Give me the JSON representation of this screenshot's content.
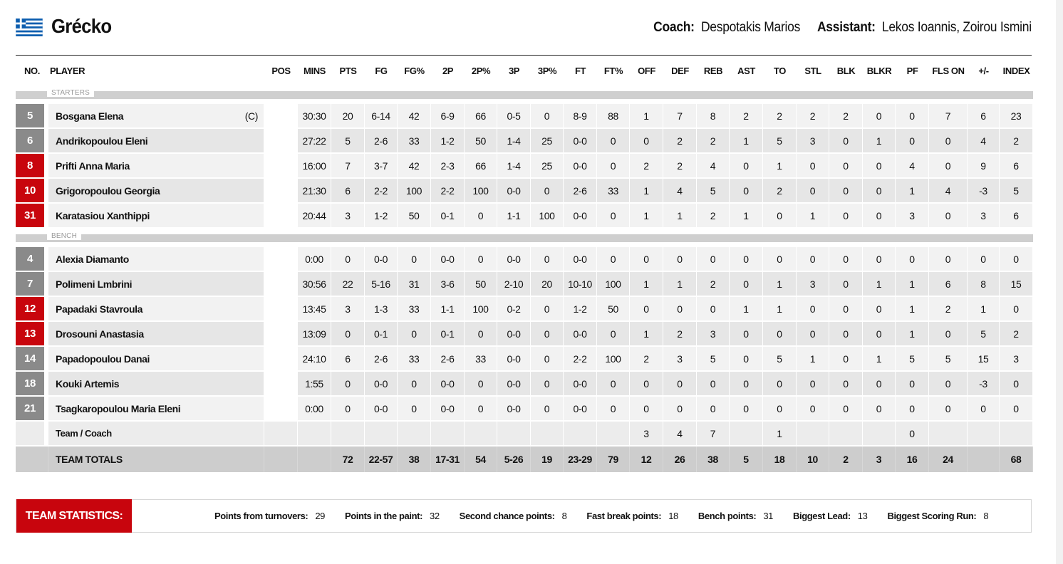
{
  "team": {
    "name": "Grécko",
    "flag_icon": "greece-flag-icon",
    "coach_label": "Coach:",
    "coach": "Despotakis Marios",
    "assistant_label": "Assistant:",
    "assistant": "Lekos Ioannis, Zoirou Ismini"
  },
  "colors": {
    "accent": "#c8050d",
    "grey_badge": "#8a8a8a"
  },
  "columns": [
    "NO.",
    "PLAYER",
    "POS",
    "MINS",
    "PTS",
    "FG",
    "FG%",
    "2P",
    "2P%",
    "3P",
    "3P%",
    "FT",
    "FT%",
    "OFF",
    "DEF",
    "REB",
    "AST",
    "TO",
    "STL",
    "BLK",
    "BLKR",
    "PF",
    "FLS ON",
    "+/-",
    "INDEX"
  ],
  "sections": {
    "starters": "STARTERS",
    "bench": "BENCH"
  },
  "starters": [
    {
      "no": "5",
      "badge": "grey",
      "name": "Bosgana Elena",
      "captain": "(C)",
      "pos": "",
      "stats": [
        "30:30",
        "20",
        "6-14",
        "42",
        "6-9",
        "66",
        "0-5",
        "0",
        "8-9",
        "88",
        "1",
        "7",
        "8",
        "2",
        "2",
        "2",
        "2",
        "0",
        "0",
        "7",
        "6",
        "23"
      ]
    },
    {
      "no": "6",
      "badge": "grey",
      "name": "Andrikopoulou Eleni",
      "captain": "",
      "pos": "",
      "stats": [
        "27:22",
        "5",
        "2-6",
        "33",
        "1-2",
        "50",
        "1-4",
        "25",
        "0-0",
        "0",
        "0",
        "2",
        "2",
        "1",
        "5",
        "3",
        "0",
        "1",
        "0",
        "0",
        "4",
        "2"
      ]
    },
    {
      "no": "8",
      "badge": "red",
      "name": "Prifti Anna Maria",
      "captain": "",
      "pos": "",
      "stats": [
        "16:00",
        "7",
        "3-7",
        "42",
        "2-3",
        "66",
        "1-4",
        "25",
        "0-0",
        "0",
        "2",
        "2",
        "4",
        "0",
        "1",
        "0",
        "0",
        "0",
        "4",
        "0",
        "9",
        "6"
      ]
    },
    {
      "no": "10",
      "badge": "red",
      "name": "Grigoropoulou Georgia",
      "captain": "",
      "pos": "",
      "stats": [
        "21:30",
        "6",
        "2-2",
        "100",
        "2-2",
        "100",
        "0-0",
        "0",
        "2-6",
        "33",
        "1",
        "4",
        "5",
        "0",
        "2",
        "0",
        "0",
        "0",
        "1",
        "4",
        "-3",
        "5"
      ]
    },
    {
      "no": "31",
      "badge": "red",
      "name": "Karatasiou Xanthippi",
      "captain": "",
      "pos": "",
      "stats": [
        "20:44",
        "3",
        "1-2",
        "50",
        "0-1",
        "0",
        "1-1",
        "100",
        "0-0",
        "0",
        "1",
        "1",
        "2",
        "1",
        "0",
        "1",
        "0",
        "0",
        "3",
        "0",
        "3",
        "6"
      ]
    }
  ],
  "bench": [
    {
      "no": "4",
      "badge": "grey",
      "name": "Alexia Diamanto",
      "captain": "",
      "pos": "",
      "stats": [
        "0:00",
        "0",
        "0-0",
        "0",
        "0-0",
        "0",
        "0-0",
        "0",
        "0-0",
        "0",
        "0",
        "0",
        "0",
        "0",
        "0",
        "0",
        "0",
        "0",
        "0",
        "0",
        "0",
        "0"
      ]
    },
    {
      "no": "7",
      "badge": "grey",
      "name": "Polimeni Lmbrini",
      "captain": "",
      "pos": "",
      "stats": [
        "30:56",
        "22",
        "5-16",
        "31",
        "3-6",
        "50",
        "2-10",
        "20",
        "10-10",
        "100",
        "1",
        "1",
        "2",
        "0",
        "1",
        "3",
        "0",
        "1",
        "1",
        "6",
        "8",
        "15"
      ]
    },
    {
      "no": "12",
      "badge": "red",
      "name": "Papadaki Stavroula",
      "captain": "",
      "pos": "",
      "stats": [
        "13:45",
        "3",
        "1-3",
        "33",
        "1-1",
        "100",
        "0-2",
        "0",
        "1-2",
        "50",
        "0",
        "0",
        "0",
        "1",
        "1",
        "0",
        "0",
        "0",
        "1",
        "2",
        "1",
        "0"
      ]
    },
    {
      "no": "13",
      "badge": "red",
      "name": "Drosouni Anastasia",
      "captain": "",
      "pos": "",
      "stats": [
        "13:09",
        "0",
        "0-1",
        "0",
        "0-1",
        "0",
        "0-0",
        "0",
        "0-0",
        "0",
        "1",
        "2",
        "3",
        "0",
        "0",
        "0",
        "0",
        "0",
        "1",
        "0",
        "5",
        "2"
      ]
    },
    {
      "no": "14",
      "badge": "grey",
      "name": "Papadopoulou Danai",
      "captain": "",
      "pos": "",
      "stats": [
        "24:10",
        "6",
        "2-6",
        "33",
        "2-6",
        "33",
        "0-0",
        "0",
        "2-2",
        "100",
        "2",
        "3",
        "5",
        "0",
        "5",
        "1",
        "0",
        "1",
        "5",
        "5",
        "15",
        "3"
      ]
    },
    {
      "no": "18",
      "badge": "grey",
      "name": "Kouki Artemis",
      "captain": "",
      "pos": "",
      "stats": [
        "1:55",
        "0",
        "0-0",
        "0",
        "0-0",
        "0",
        "0-0",
        "0",
        "0-0",
        "0",
        "0",
        "0",
        "0",
        "0",
        "0",
        "0",
        "0",
        "0",
        "0",
        "0",
        "-3",
        "0"
      ]
    },
    {
      "no": "21",
      "badge": "grey",
      "name": "Tsagkaropoulou Maria Eleni",
      "captain": "",
      "pos": "",
      "stats": [
        "0:00",
        "0",
        "0-0",
        "0",
        "0-0",
        "0",
        "0-0",
        "0",
        "0-0",
        "0",
        "0",
        "0",
        "0",
        "0",
        "0",
        "0",
        "0",
        "0",
        "0",
        "0",
        "0",
        "0"
      ]
    }
  ],
  "team_coach": {
    "label": "Team / Coach",
    "stats": [
      "",
      "",
      "",
      "",
      "",
      "",
      "",
      "",
      "",
      "",
      "3",
      "4",
      "7",
      "",
      "1",
      "",
      "",
      "",
      "0",
      "",
      "",
      ""
    ]
  },
  "totals": {
    "label": "TEAM TOTALS",
    "stats": [
      "",
      "72",
      "22-57",
      "38",
      "17-31",
      "54",
      "5-26",
      "19",
      "23-29",
      "79",
      "12",
      "26",
      "38",
      "5",
      "18",
      "10",
      "2",
      "3",
      "16",
      "24",
      "",
      "68"
    ]
  },
  "team_statistics": {
    "label": "TEAM STATISTICS:",
    "items": [
      {
        "k": "Points from turnovers:",
        "v": "29"
      },
      {
        "k": "Points in the paint:",
        "v": "32"
      },
      {
        "k": "Second chance points:",
        "v": "8"
      },
      {
        "k": "Fast break points:",
        "v": "18"
      },
      {
        "k": "Bench points:",
        "v": "31"
      },
      {
        "k": "Biggest Lead:",
        "v": "13"
      },
      {
        "k": "Biggest Scoring Run:",
        "v": "8"
      }
    ]
  }
}
